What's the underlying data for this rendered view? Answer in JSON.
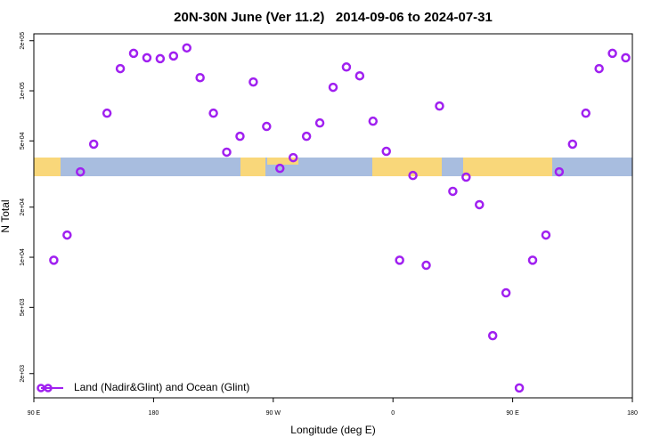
{
  "chart_data": {
    "type": "scatter",
    "title": "20N-30N June (Ver 11.2)   2014-09-06 to 2024-07-31",
    "x_label": "Longitude (deg E)",
    "y_label": "N Total",
    "log_y": true,
    "legend_position": "bottom-left",
    "xlim": [
      90,
      540
    ],
    "ylim": [
      1430,
      220000
    ],
    "xticks": [
      {
        "value": 90,
        "label": "90 E"
      },
      {
        "value": 180,
        "label": "180"
      },
      {
        "value": 270,
        "label": "90 W"
      },
      {
        "value": 360,
        "label": "0"
      },
      {
        "value": 450,
        "label": "90 E"
      },
      {
        "value": 540,
        "label": "180"
      }
    ],
    "yticks": [
      {
        "value": 2000,
        "label": "2e+03"
      },
      {
        "value": 5000,
        "label": "5e+03"
      },
      {
        "value": 10000,
        "label": "1e+04"
      },
      {
        "value": 20000,
        "label": "2e+04"
      },
      {
        "value": 50000,
        "label": "5e+04"
      },
      {
        "value": 100000,
        "label": "1e+05"
      },
      {
        "value": 200000,
        "label": "2e+05"
      }
    ],
    "series": [
      {
        "name": "Land (Nadir&Glint) and Ocean (Glint)",
        "color": "#a020f0",
        "x": [
          105,
          115,
          125,
          135,
          145,
          155,
          165,
          175,
          185,
          195,
          205,
          215,
          225,
          235,
          245,
          255,
          265,
          275,
          285,
          295,
          305,
          315,
          325,
          335,
          345,
          355,
          365,
          375,
          385,
          395,
          405,
          415,
          425,
          435,
          445,
          455,
          465,
          475,
          485,
          495,
          505,
          515,
          525,
          535
        ],
        "values": [
          9600,
          13600,
          32600,
          47800,
          73400,
          136000,
          168000,
          158000,
          156000,
          162000,
          181000,
          120000,
          73400,
          42800,
          53300,
          113000,
          61100,
          34200,
          39700,
          53300,
          64100,
          105000,
          139000,
          123000,
          65700,
          43300,
          9600,
          31000,
          8950,
          81000,
          24900,
          30300,
          20700,
          3380,
          6110,
          1640,
          9600,
          13600,
          32600,
          47800,
          73400,
          136000,
          168000,
          158000
        ]
      }
    ]
  }
}
